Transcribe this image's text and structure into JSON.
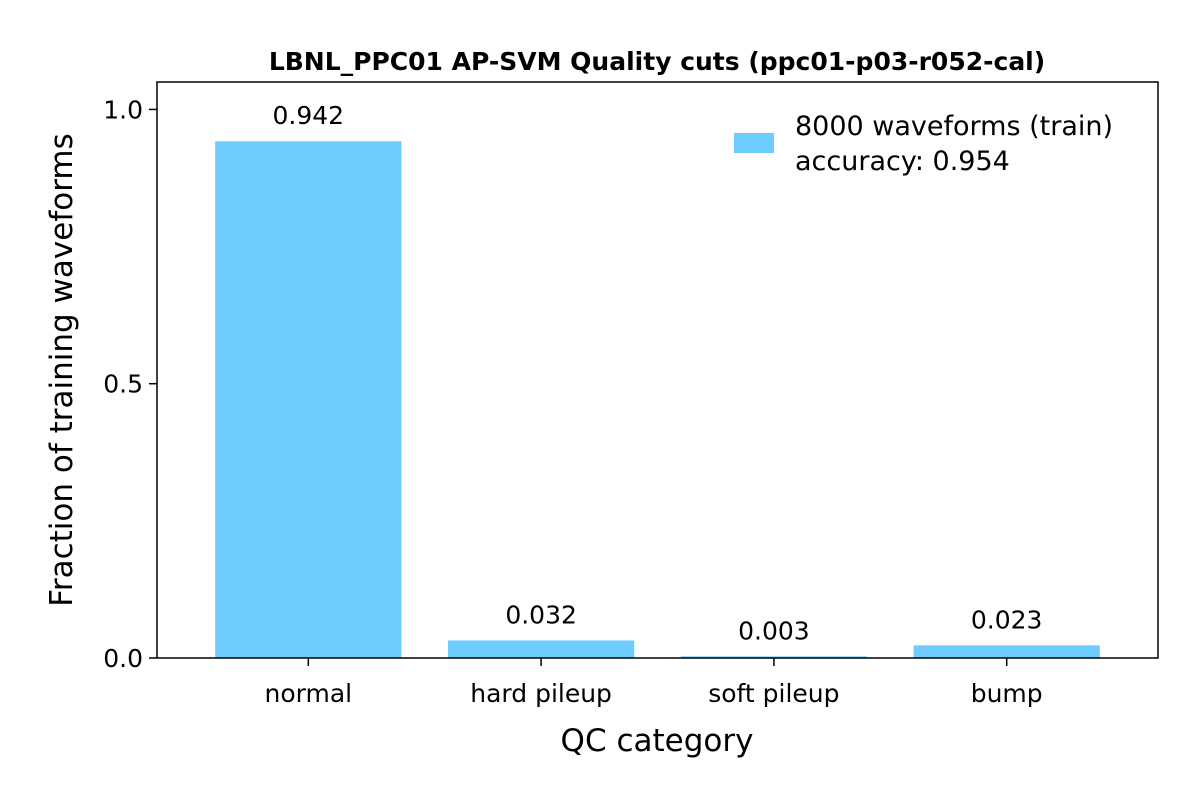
{
  "chart_data": {
    "type": "bar",
    "title": "LBNL_PPC01 AP-SVM Quality cuts (ppc01-p03-r052-cal)",
    "xlabel": "QC category",
    "ylabel": "Fraction of training waveforms",
    "categories": [
      "normal",
      "hard pileup",
      "soft pileup",
      "bump"
    ],
    "values": [
      0.942,
      0.032,
      0.003,
      0.023
    ],
    "data_labels": [
      "0.942",
      "0.032",
      "0.003",
      "0.023"
    ],
    "ylim": [
      0,
      1.05
    ],
    "yticks": [
      0.0,
      0.5,
      1.0
    ],
    "ytick_labels": [
      "0.0",
      "0.5",
      "1.0"
    ],
    "grid": false,
    "legend": {
      "placement": "top-right",
      "lines": [
        "8000 waveforms (train)",
        "accuracy: 0.954"
      ]
    },
    "colors": {
      "bar": "#6ecbfd",
      "axes": "#000000",
      "background": "#ffffff"
    }
  }
}
